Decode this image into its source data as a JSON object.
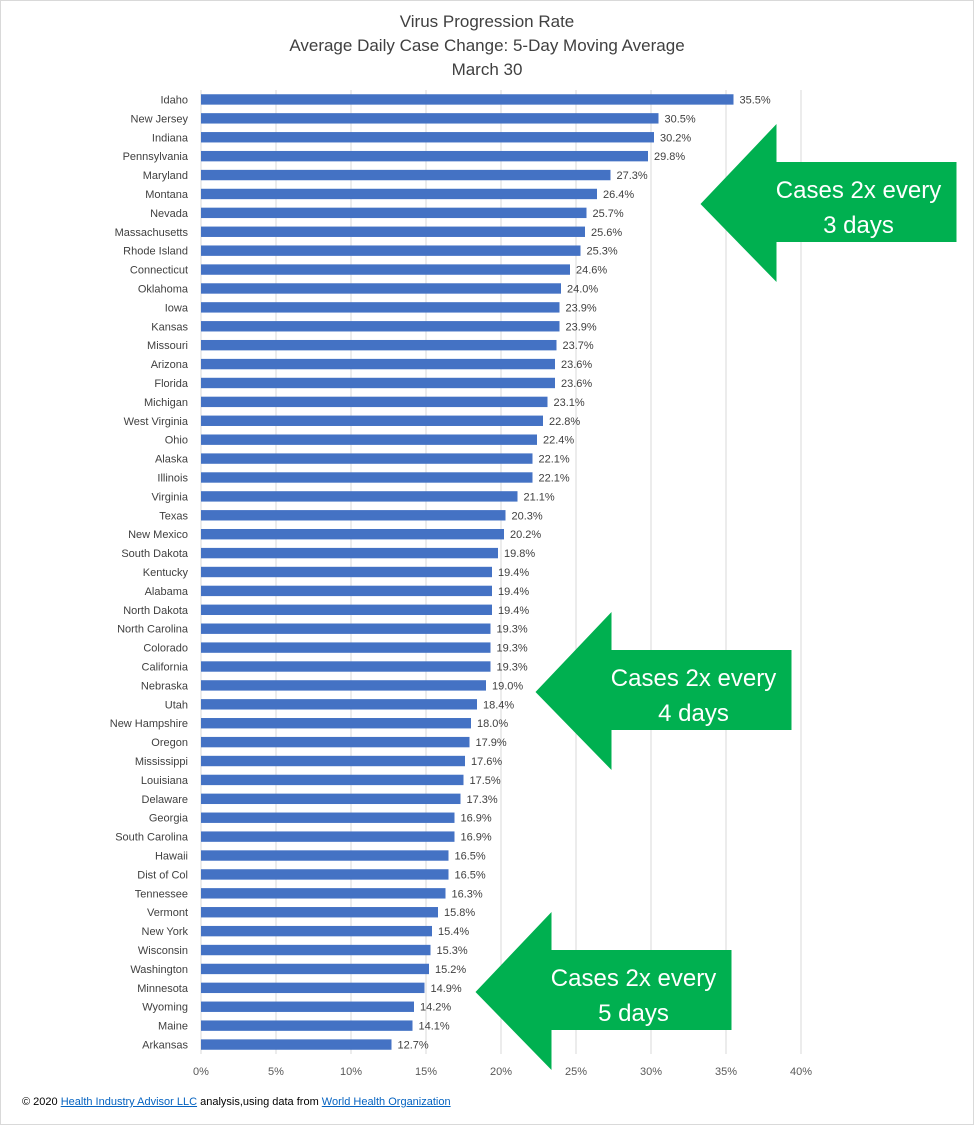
{
  "chart_data": {
    "type": "bar",
    "orientation": "horizontal",
    "title": [
      "Virus Progression Rate",
      "Average Daily Case Change: 5-Day Moving Average",
      "March 30"
    ],
    "categories": [
      "Idaho",
      "New Jersey",
      "Indiana",
      "Pennsylvania",
      "Maryland",
      "Montana",
      "Nevada",
      "Massachusetts",
      "Rhode Island",
      "Connecticut",
      "Oklahoma",
      "Iowa",
      "Kansas",
      "Missouri",
      "Arizona",
      "Florida",
      "Michigan",
      "West Virginia",
      "Ohio",
      "Alaska",
      "Illinois",
      "Virginia",
      "Texas",
      "New Mexico",
      "South Dakota",
      "Kentucky",
      "Alabama",
      "North Dakota",
      "North Carolina",
      "Colorado",
      "California",
      "Nebraska",
      "Utah",
      "New Hampshire",
      "Oregon",
      "Mississippi",
      "Louisiana",
      "Delaware",
      "Georgia",
      "South Carolina",
      "Hawaii",
      "Dist of Col",
      "Tennessee",
      "Vermont",
      "New York",
      "Wisconsin",
      "Washington",
      "Minnesota",
      "Wyoming",
      "Maine",
      "Arkansas"
    ],
    "values": [
      35.5,
      30.5,
      30.2,
      29.8,
      27.3,
      26.4,
      25.7,
      25.6,
      25.3,
      24.6,
      24.0,
      23.9,
      23.9,
      23.7,
      23.6,
      23.6,
      23.1,
      22.8,
      22.4,
      22.1,
      22.1,
      21.1,
      20.3,
      20.2,
      19.8,
      19.4,
      19.4,
      19.4,
      19.3,
      19.3,
      19.3,
      19.0,
      18.4,
      18.0,
      17.9,
      17.6,
      17.5,
      17.3,
      16.9,
      16.9,
      16.5,
      16.5,
      16.3,
      15.8,
      15.4,
      15.3,
      15.2,
      14.9,
      14.2,
      14.1,
      12.7
    ],
    "data_labels": [
      "35.5%",
      "30.5%",
      "30.2%",
      "29.8%",
      "27.3%",
      "26.4%",
      "25.7%",
      "25.6%",
      "25.3%",
      "24.6%",
      "24.0%",
      "23.9%",
      "23.9%",
      "23.7%",
      "23.6%",
      "23.6%",
      "23.1%",
      "22.8%",
      "22.4%",
      "22.1%",
      "22.1%",
      "21.1%",
      "20.3%",
      "20.2%",
      "19.8%",
      "19.4%",
      "19.4%",
      "19.4%",
      "19.3%",
      "19.3%",
      "19.3%",
      "19.0%",
      "18.4%",
      "18.0%",
      "17.9%",
      "17.6%",
      "17.5%",
      "17.3%",
      "16.9%",
      "16.9%",
      "16.5%",
      "16.5%",
      "16.3%",
      "15.8%",
      "15.4%",
      "15.3%",
      "15.2%",
      "14.9%",
      "14.2%",
      "14.1%",
      "12.7%"
    ],
    "xlim": [
      0,
      40
    ],
    "xticks": [
      0,
      5,
      10,
      15,
      20,
      25,
      30,
      35,
      40
    ],
    "xtick_labels": [
      "0%",
      "5%",
      "10%",
      "15%",
      "20%",
      "25%",
      "30%",
      "35%",
      "40%"
    ],
    "grid": true,
    "bar_color": "#4472c4",
    "annotations": [
      {
        "line1": "Cases  2x every",
        "line2": "3 days",
        "points_to_value": 33.3
      },
      {
        "line1": "Cases  2x every",
        "line2": "4 days",
        "points_to_value": 22.3
      },
      {
        "line1": "Cases  2x every",
        "line2": "5 days",
        "points_to_value": 18.3
      }
    ],
    "annotation_color": "#00b050"
  },
  "footer": {
    "prefix": "© 2020 ",
    "link1": "Health Industry Advisor LLC",
    "middle": " analysis,using data from ",
    "link2": "World Health Organization"
  }
}
